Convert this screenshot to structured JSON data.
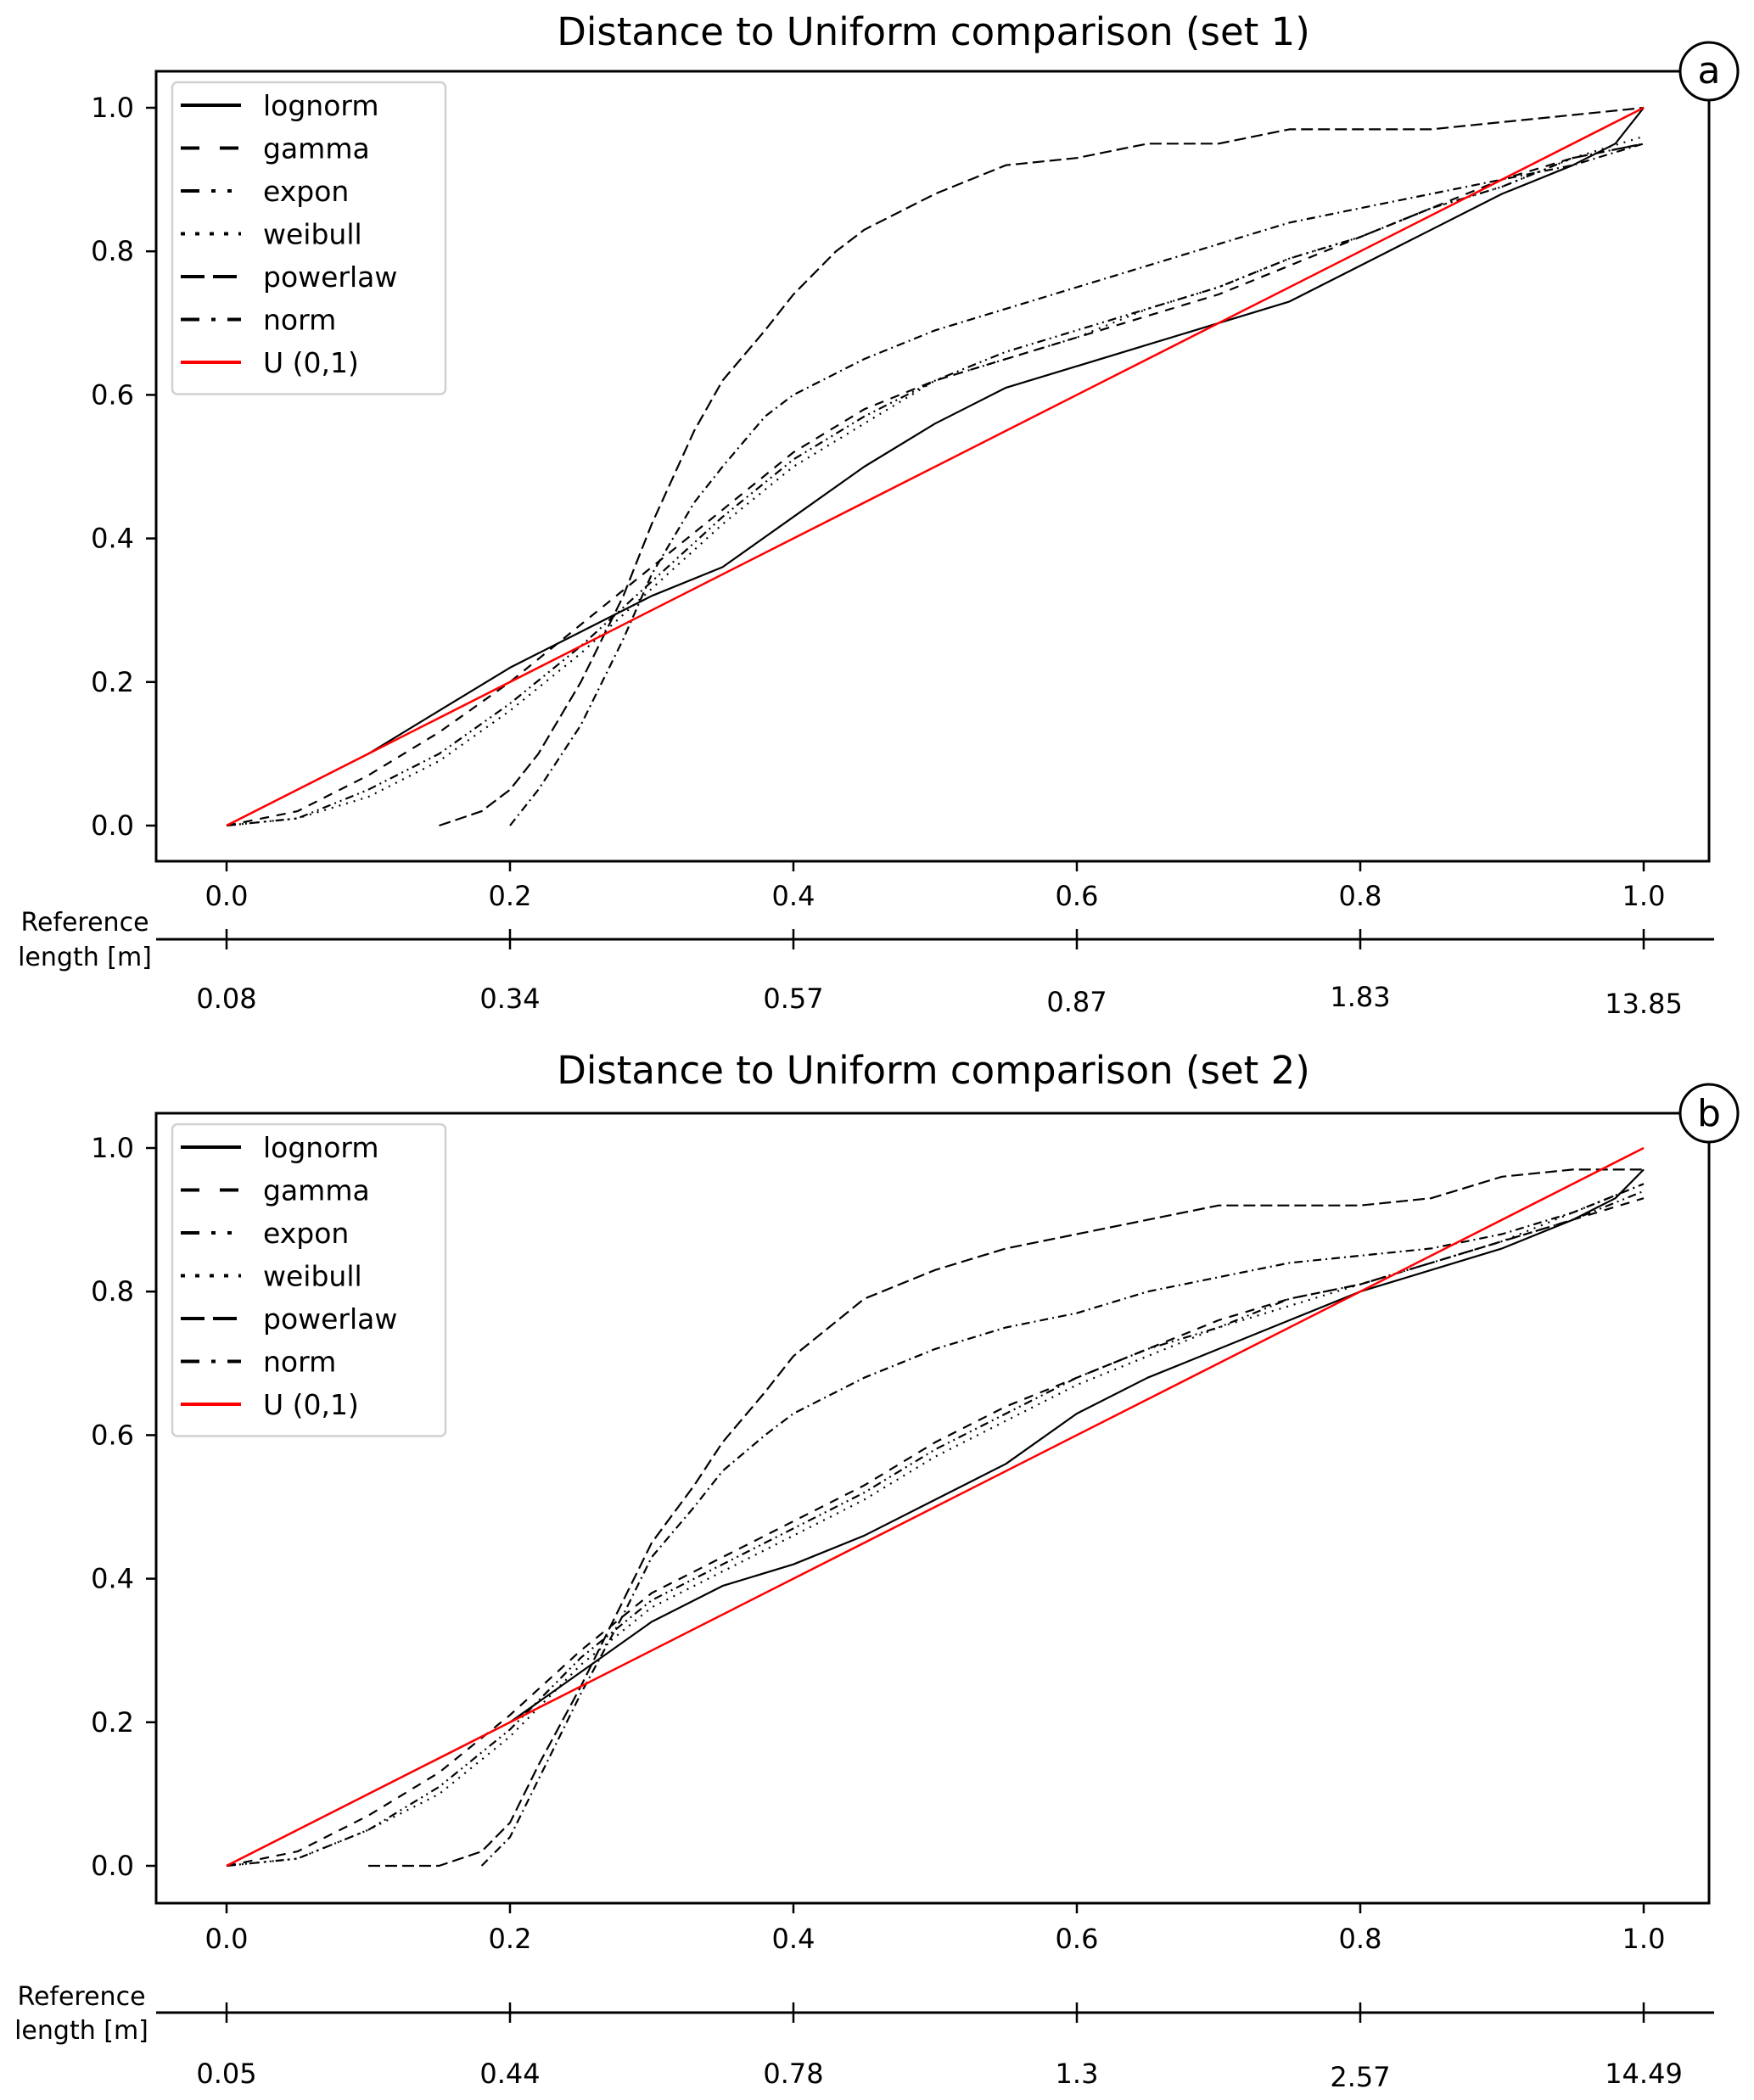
{
  "figure": {
    "panels": [
      {
        "id": "a",
        "title": "Distance to Uniform comparison (set 1)",
        "panel_label": "a",
        "secondary_axis_label_line1": "Reference",
        "secondary_axis_label_line2": "length [m]",
        "x_ticks": [
          "0.0",
          "0.2",
          "0.4",
          "0.6",
          "0.8",
          "1.0"
        ],
        "y_ticks": [
          "0.0",
          "0.2",
          "0.4",
          "0.6",
          "0.8",
          "1.0"
        ],
        "reference_ticks": [
          "0.08",
          "0.34",
          "0.57",
          "0.87",
          "1.83",
          "13.85"
        ]
      },
      {
        "id": "b",
        "title": "Distance to Uniform comparison (set 2)",
        "panel_label": "b",
        "secondary_axis_label_line1": "Reference",
        "secondary_axis_label_line2": "length [m]",
        "x_ticks": [
          "0.0",
          "0.2",
          "0.4",
          "0.6",
          "0.8",
          "1.0"
        ],
        "y_ticks": [
          "0.0",
          "0.2",
          "0.4",
          "0.6",
          "0.8",
          "1.0"
        ],
        "reference_ticks": [
          "0.05",
          "0.44",
          "0.78",
          "1.3",
          "2.57",
          "14.49"
        ]
      }
    ],
    "legend": [
      {
        "label": "lognorm",
        "style": "solid",
        "color": "#000000"
      },
      {
        "label": "gamma",
        "style": "dashed",
        "color": "#000000"
      },
      {
        "label": "expon",
        "style": "dashdotdot",
        "color": "#000000"
      },
      {
        "label": "weibull",
        "style": "dotted",
        "color": "#000000"
      },
      {
        "label": "powerlaw",
        "style": "longdash",
        "color": "#000000"
      },
      {
        "label": "norm",
        "style": "dashdot",
        "color": "#000000"
      },
      {
        "label": "U (0,1)",
        "style": "solid",
        "color": "#ff0000"
      }
    ]
  },
  "chart_data": [
    {
      "type": "line",
      "title": "Distance to Uniform comparison (set 1)",
      "xlabel": "",
      "ylabel": "",
      "secondary_xlabel": "Reference length [m]",
      "xlim": [
        -0.05,
        1.05
      ],
      "ylim": [
        -0.05,
        1.05
      ],
      "grid": false,
      "legend_position": "top-left",
      "x_ticks": [
        0.0,
        0.2,
        0.4,
        0.6,
        0.8,
        1.0
      ],
      "y_ticks": [
        0.0,
        0.2,
        0.4,
        0.6,
        0.8,
        1.0
      ],
      "secondary_x_ticks": [
        0.08,
        0.34,
        0.57,
        0.87,
        1.83,
        13.85
      ],
      "series": [
        {
          "name": "lognorm",
          "style": "solid",
          "color": "#000000",
          "x": [
            0.0,
            0.05,
            0.1,
            0.15,
            0.2,
            0.25,
            0.3,
            0.35,
            0.4,
            0.45,
            0.5,
            0.55,
            0.6,
            0.65,
            0.7,
            0.75,
            0.8,
            0.85,
            0.9,
            0.95,
            0.98,
            1.0
          ],
          "y": [
            0.0,
            0.05,
            0.1,
            0.16,
            0.22,
            0.27,
            0.32,
            0.36,
            0.43,
            0.5,
            0.56,
            0.61,
            0.64,
            0.67,
            0.7,
            0.73,
            0.78,
            0.83,
            0.88,
            0.92,
            0.95,
            1.0
          ]
        },
        {
          "name": "gamma",
          "style": "dashed",
          "color": "#000000",
          "x": [
            0.0,
            0.05,
            0.1,
            0.15,
            0.2,
            0.25,
            0.3,
            0.35,
            0.4,
            0.45,
            0.5,
            0.55,
            0.6,
            0.65,
            0.7,
            0.75,
            0.8,
            0.85,
            0.9,
            0.95,
            1.0
          ],
          "y": [
            0.0,
            0.02,
            0.07,
            0.13,
            0.2,
            0.28,
            0.36,
            0.44,
            0.52,
            0.58,
            0.62,
            0.65,
            0.68,
            0.71,
            0.74,
            0.78,
            0.82,
            0.86,
            0.9,
            0.93,
            0.95
          ]
        },
        {
          "name": "expon",
          "style": "dashdotdot",
          "color": "#000000",
          "x": [
            0.0,
            0.05,
            0.1,
            0.15,
            0.2,
            0.25,
            0.3,
            0.35,
            0.4,
            0.45,
            0.5,
            0.55,
            0.6,
            0.65,
            0.7,
            0.75,
            0.8,
            0.85,
            0.9,
            0.95,
            1.0
          ],
          "y": [
            0.0,
            0.01,
            0.05,
            0.1,
            0.17,
            0.25,
            0.34,
            0.43,
            0.51,
            0.57,
            0.62,
            0.66,
            0.69,
            0.72,
            0.75,
            0.79,
            0.82,
            0.86,
            0.89,
            0.93,
            0.95
          ]
        },
        {
          "name": "weibull",
          "style": "dotted",
          "color": "#000000",
          "x": [
            0.0,
            0.05,
            0.1,
            0.15,
            0.2,
            0.25,
            0.3,
            0.35,
            0.4,
            0.45,
            0.5,
            0.55,
            0.6,
            0.65,
            0.7,
            0.75,
            0.8,
            0.85,
            0.9,
            0.95,
            1.0
          ],
          "y": [
            0.0,
            0.01,
            0.04,
            0.09,
            0.16,
            0.24,
            0.33,
            0.42,
            0.5,
            0.56,
            0.62,
            0.65,
            0.68,
            0.72,
            0.75,
            0.79,
            0.82,
            0.86,
            0.89,
            0.93,
            0.96
          ]
        },
        {
          "name": "powerlaw",
          "style": "longdash",
          "color": "#000000",
          "x": [
            0.15,
            0.18,
            0.2,
            0.22,
            0.25,
            0.28,
            0.3,
            0.33,
            0.35,
            0.38,
            0.4,
            0.43,
            0.45,
            0.5,
            0.55,
            0.6,
            0.65,
            0.7,
            0.75,
            0.8,
            0.85,
            0.9,
            0.95,
            1.0
          ],
          "y": [
            0.0,
            0.02,
            0.05,
            0.1,
            0.2,
            0.32,
            0.42,
            0.55,
            0.62,
            0.69,
            0.74,
            0.8,
            0.83,
            0.88,
            0.92,
            0.93,
            0.95,
            0.95,
            0.97,
            0.97,
            0.97,
            0.98,
            0.99,
            1.0
          ]
        },
        {
          "name": "norm",
          "style": "dashdot",
          "color": "#000000",
          "x": [
            0.2,
            0.22,
            0.25,
            0.28,
            0.3,
            0.33,
            0.35,
            0.38,
            0.4,
            0.45,
            0.5,
            0.55,
            0.6,
            0.65,
            0.7,
            0.75,
            0.8,
            0.85,
            0.9,
            0.95,
            1.0
          ],
          "y": [
            0.0,
            0.05,
            0.14,
            0.26,
            0.35,
            0.45,
            0.5,
            0.57,
            0.6,
            0.65,
            0.69,
            0.72,
            0.75,
            0.78,
            0.81,
            0.84,
            0.86,
            0.88,
            0.9,
            0.92,
            0.95
          ]
        },
        {
          "name": "U (0,1)",
          "style": "solid",
          "color": "#ff0000",
          "x": [
            0.0,
            1.0
          ],
          "y": [
            0.0,
            1.0
          ]
        }
      ]
    },
    {
      "type": "line",
      "title": "Distance to Uniform comparison (set 2)",
      "xlabel": "",
      "ylabel": "",
      "secondary_xlabel": "Reference length [m]",
      "xlim": [
        -0.05,
        1.05
      ],
      "ylim": [
        -0.05,
        1.05
      ],
      "grid": false,
      "legend_position": "top-left",
      "x_ticks": [
        0.0,
        0.2,
        0.4,
        0.6,
        0.8,
        1.0
      ],
      "y_ticks": [
        0.0,
        0.2,
        0.4,
        0.6,
        0.8,
        1.0
      ],
      "secondary_x_ticks": [
        0.05,
        0.44,
        0.78,
        1.3,
        2.57,
        14.49
      ],
      "series": [
        {
          "name": "lognorm",
          "style": "solid",
          "color": "#000000",
          "x": [
            0.0,
            0.05,
            0.1,
            0.15,
            0.2,
            0.25,
            0.3,
            0.35,
            0.4,
            0.45,
            0.5,
            0.55,
            0.6,
            0.65,
            0.7,
            0.75,
            0.8,
            0.85,
            0.9,
            0.95,
            0.98,
            1.0
          ],
          "y": [
            0.0,
            0.05,
            0.1,
            0.15,
            0.2,
            0.27,
            0.34,
            0.39,
            0.42,
            0.46,
            0.51,
            0.56,
            0.63,
            0.68,
            0.72,
            0.76,
            0.8,
            0.83,
            0.86,
            0.9,
            0.93,
            0.97
          ]
        },
        {
          "name": "gamma",
          "style": "dashed",
          "color": "#000000",
          "x": [
            0.0,
            0.05,
            0.1,
            0.15,
            0.2,
            0.25,
            0.3,
            0.35,
            0.4,
            0.45,
            0.5,
            0.55,
            0.6,
            0.65,
            0.7,
            0.75,
            0.8,
            0.85,
            0.9,
            0.95,
            1.0
          ],
          "y": [
            0.0,
            0.02,
            0.07,
            0.13,
            0.21,
            0.3,
            0.38,
            0.43,
            0.48,
            0.53,
            0.59,
            0.64,
            0.68,
            0.72,
            0.76,
            0.79,
            0.81,
            0.84,
            0.87,
            0.9,
            0.93
          ]
        },
        {
          "name": "expon",
          "style": "dashdotdot",
          "color": "#000000",
          "x": [
            0.0,
            0.05,
            0.1,
            0.15,
            0.2,
            0.25,
            0.3,
            0.35,
            0.4,
            0.45,
            0.5,
            0.55,
            0.6,
            0.65,
            0.7,
            0.75,
            0.8,
            0.85,
            0.9,
            0.95,
            1.0
          ],
          "y": [
            0.0,
            0.01,
            0.05,
            0.11,
            0.19,
            0.29,
            0.37,
            0.42,
            0.47,
            0.52,
            0.58,
            0.63,
            0.68,
            0.72,
            0.75,
            0.79,
            0.81,
            0.84,
            0.87,
            0.9,
            0.94
          ]
        },
        {
          "name": "weibull",
          "style": "dotted",
          "color": "#000000",
          "x": [
            0.0,
            0.05,
            0.1,
            0.15,
            0.2,
            0.25,
            0.3,
            0.35,
            0.4,
            0.45,
            0.5,
            0.55,
            0.6,
            0.65,
            0.7,
            0.75,
            0.8,
            0.85,
            0.9,
            0.95,
            1.0
          ],
          "y": [
            0.0,
            0.01,
            0.05,
            0.1,
            0.18,
            0.28,
            0.36,
            0.41,
            0.46,
            0.51,
            0.57,
            0.62,
            0.67,
            0.71,
            0.75,
            0.78,
            0.81,
            0.84,
            0.87,
            0.91,
            0.95
          ]
        },
        {
          "name": "powerlaw",
          "style": "longdash",
          "color": "#000000",
          "x": [
            0.1,
            0.15,
            0.18,
            0.2,
            0.22,
            0.25,
            0.28,
            0.3,
            0.33,
            0.35,
            0.38,
            0.4,
            0.45,
            0.5,
            0.55,
            0.6,
            0.65,
            0.7,
            0.75,
            0.8,
            0.85,
            0.9,
            0.95,
            1.0
          ],
          "y": [
            0.0,
            0.0,
            0.02,
            0.06,
            0.14,
            0.25,
            0.37,
            0.45,
            0.53,
            0.59,
            0.66,
            0.71,
            0.79,
            0.83,
            0.86,
            0.88,
            0.9,
            0.92,
            0.92,
            0.92,
            0.93,
            0.96,
            0.97,
            0.97
          ]
        },
        {
          "name": "norm",
          "style": "dashdot",
          "color": "#000000",
          "x": [
            0.18,
            0.2,
            0.22,
            0.25,
            0.28,
            0.3,
            0.33,
            0.35,
            0.38,
            0.4,
            0.45,
            0.5,
            0.55,
            0.6,
            0.65,
            0.7,
            0.75,
            0.8,
            0.85,
            0.9,
            0.95,
            1.0
          ],
          "y": [
            0.0,
            0.04,
            0.12,
            0.24,
            0.35,
            0.43,
            0.5,
            0.55,
            0.6,
            0.63,
            0.68,
            0.72,
            0.75,
            0.77,
            0.8,
            0.82,
            0.84,
            0.85,
            0.86,
            0.88,
            0.91,
            0.95
          ]
        },
        {
          "name": "U (0,1)",
          "style": "solid",
          "color": "#ff0000",
          "x": [
            0.0,
            1.0
          ],
          "y": [
            0.0,
            1.0
          ]
        }
      ]
    }
  ]
}
